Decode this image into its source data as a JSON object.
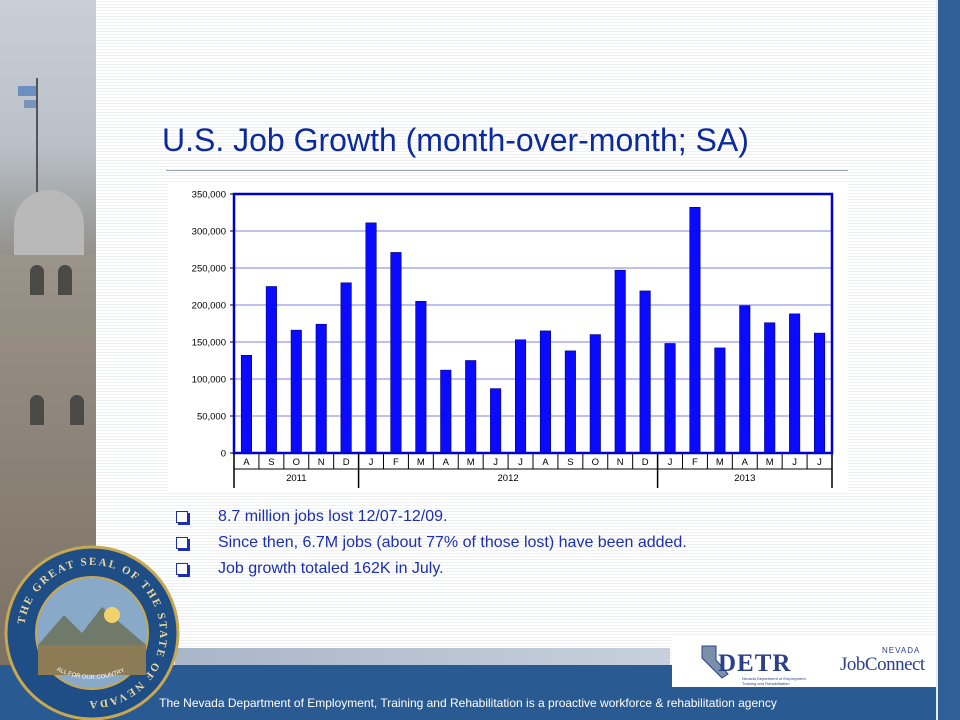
{
  "slide": {
    "title": "U.S. Job Growth (month-over-month; SA)",
    "bullets": [
      "8.7 million jobs lost 12/07-12/09.",
      "Since then, 6.7M jobs (about 77% of those lost) have been added.",
      "Job growth totaled 162K in July."
    ],
    "footer": "The Nevada Department of Employment, Training and Rehabilitation is a proactive workforce & rehabilitation agency",
    "logos": {
      "detr_word": "DETR",
      "detr_sub": "Nevada Department of Employment, Training and Rehabilitation",
      "jobconnect_state": "NEVADA",
      "jobconnect_word": "JobConnect"
    },
    "seal_text": {
      "ring": "THE GREAT SEAL OF THE STATE OF NEVADA",
      "motto": "ALL FOR OUR COUNTRY"
    }
  },
  "chart_data": {
    "type": "bar",
    "categories": [
      "A",
      "S",
      "O",
      "N",
      "D",
      "J",
      "F",
      "M",
      "A",
      "M",
      "J",
      "J",
      "A",
      "S",
      "O",
      "N",
      "D",
      "J",
      "F",
      "M",
      "A",
      "M",
      "J",
      "J"
    ],
    "year_groups": [
      {
        "label": "2011",
        "count": 5
      },
      {
        "label": "2012",
        "count": 12
      },
      {
        "label": "2013",
        "count": 7
      }
    ],
    "values": [
      132000,
      225000,
      166000,
      174000,
      230000,
      311000,
      271000,
      205000,
      112000,
      125000,
      87000,
      153000,
      165000,
      138000,
      160000,
      247000,
      219000,
      148000,
      332000,
      142000,
      199000,
      176000,
      188000,
      162000
    ],
    "y_ticks": [
      "0",
      "50,000",
      "100,000",
      "150,000",
      "200,000",
      "250,000",
      "300,000",
      "350,000"
    ],
    "ylim": [
      0,
      350000
    ],
    "grid": true,
    "colors": {
      "bar": "#0a0aff",
      "plot_border": "#0000cc",
      "grid": "#8080e0"
    }
  }
}
